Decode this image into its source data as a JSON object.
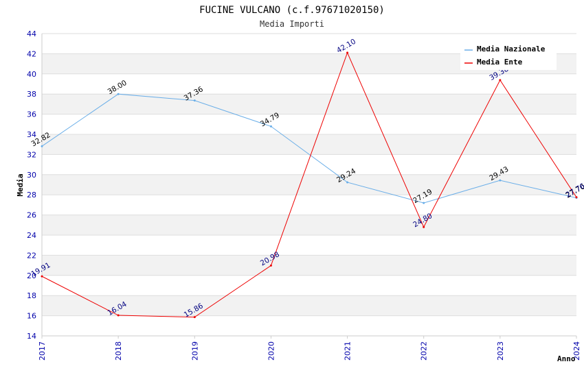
{
  "chart_data": {
    "type": "line",
    "title": "FUCINE VULCANO (c.f.97671020150)",
    "subtitle": "Media Importi",
    "xlabel": "Anno",
    "ylabel": "Media",
    "ylim": [
      14,
      44
    ],
    "ytick_step": 2,
    "categories": [
      "2017",
      "2018",
      "2019",
      "2020",
      "2021",
      "2022",
      "2023",
      "2024"
    ],
    "series": [
      {
        "name": "Media Nazionale",
        "color": "#6aaee8",
        "values": [
          32.82,
          38.0,
          37.36,
          34.79,
          29.24,
          27.19,
          29.43,
          27.7
        ],
        "labels": [
          "32.82",
          "38.00",
          "37.36",
          "34.79",
          "29.24",
          "27.19",
          "29.43",
          "27.70"
        ]
      },
      {
        "name": "Media Ente",
        "color": "#ee0000",
        "values": [
          19.91,
          16.04,
          15.86,
          20.98,
          42.1,
          24.8,
          39.38,
          27.76
        ],
        "labels": [
          "19.91",
          "16.04",
          "15.86",
          "20.98",
          "42.10",
          "24.80",
          "39.38",
          "27.76"
        ]
      }
    ],
    "legend_position": "top-right",
    "grid": true
  }
}
